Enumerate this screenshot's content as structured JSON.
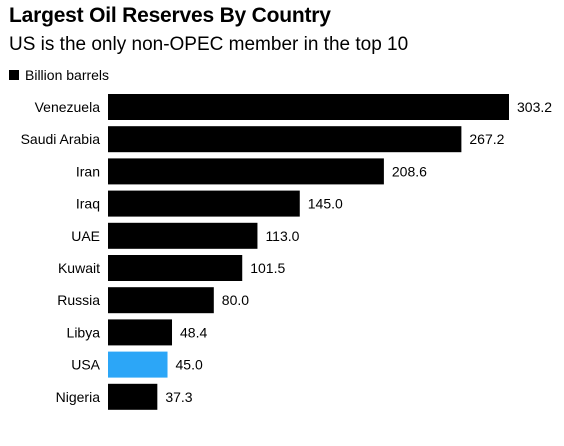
{
  "chart_data": {
    "type": "bar",
    "orientation": "horizontal",
    "title": "Largest Oil Reserves By Country",
    "subtitle": "US is the only non-OPEC member in the top 10",
    "categories": [
      "Venezuela",
      "Saudi Arabia",
      "Iran",
      "Iraq",
      "UAE",
      "Kuwait",
      "Russia",
      "Libya",
      "USA",
      "Nigeria"
    ],
    "series": [
      {
        "name": "Billion barrels",
        "values": [
          303.2,
          267.2,
          208.6,
          145.0,
          113.0,
          101.5,
          80.0,
          48.4,
          45.0,
          37.3
        ],
        "value_labels": [
          "303.2",
          "267.2",
          "208.6",
          "145.0",
          "113.0",
          "101.5",
          "80.0",
          "48.4",
          "45.0",
          "37.3"
        ]
      }
    ],
    "xlim": [
      0,
      303.2
    ],
    "grid": false,
    "legend": "top-left",
    "colors": {
      "bar": "#000000",
      "highlight": "#2ca6f7",
      "highlight_category": "USA"
    }
  }
}
